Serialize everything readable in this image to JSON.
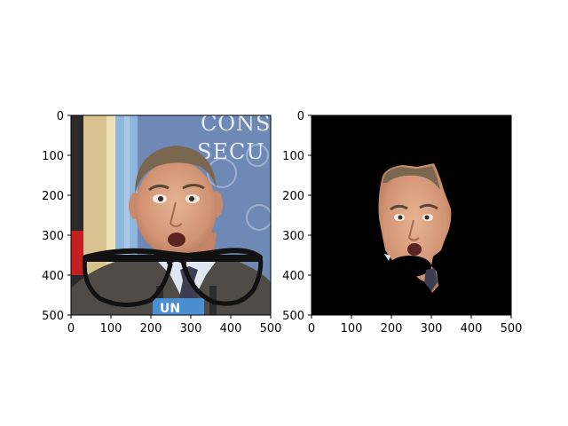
{
  "figure": {
    "panels": [
      {
        "id": "left",
        "image": "portrait of a man with black eyeglasses drawn over his shoulders, UN background",
        "x_ticks": [
          "0",
          "100",
          "200",
          "300",
          "400",
          "500"
        ],
        "y_ticks": [
          "0",
          "100",
          "200",
          "300",
          "400",
          "500"
        ],
        "sign_text": [
          "CONS",
          "SECU"
        ],
        "podium_text": "UN"
      },
      {
        "id": "right",
        "image": "segmented face on black background",
        "x_ticks": [
          "0",
          "100",
          "200",
          "300",
          "400",
          "500"
        ],
        "y_ticks": [
          "0",
          "100",
          "200",
          "300",
          "400",
          "500"
        ]
      }
    ]
  },
  "colors": {
    "background": "#ffffff",
    "mask_background": "#000000",
    "wall_blue": "#6f89b6",
    "suit": "#4f4c47",
    "skin": "#d9a07f",
    "hair": "#7b6650"
  }
}
